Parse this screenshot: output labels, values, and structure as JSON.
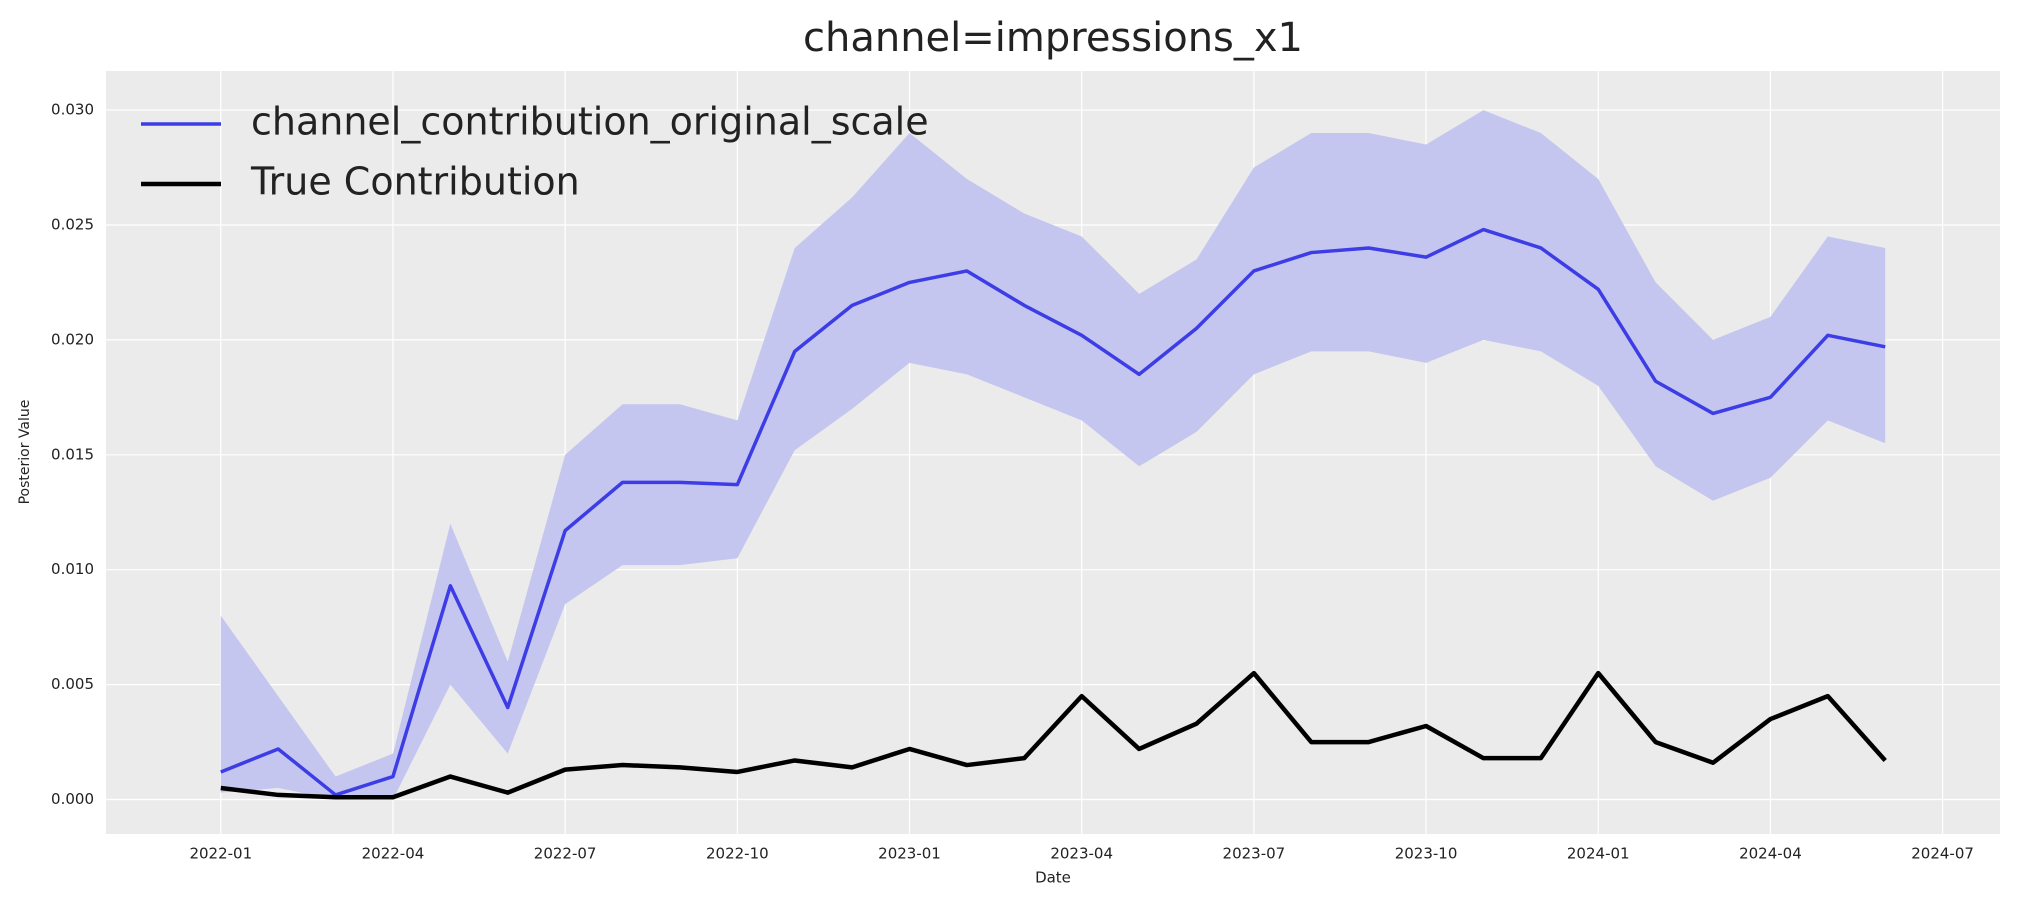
{
  "chart_data": {
    "type": "line",
    "title": "channel=impressions_x1",
    "xlabel": "Date",
    "ylabel": "Posterior Value",
    "x": [
      "2022-01",
      "2022-02",
      "2022-03",
      "2022-04",
      "2022-05",
      "2022-06",
      "2022-07",
      "2022-08",
      "2022-09",
      "2022-10",
      "2022-11",
      "2022-12",
      "2023-01",
      "2023-02",
      "2023-03",
      "2023-04",
      "2023-05",
      "2023-06",
      "2023-07",
      "2023-08",
      "2023-09",
      "2023-10",
      "2023-11",
      "2023-12",
      "2024-01",
      "2024-02",
      "2024-03",
      "2024-04",
      "2024-05",
      "2024-06"
    ],
    "series": [
      {
        "name": "channel_contribution_original_scale",
        "color": "#3d3de6",
        "band_color": "#c5c6ef",
        "values": [
          0.0012,
          0.0022,
          0.0002,
          0.001,
          0.0093,
          0.004,
          0.0117,
          0.0138,
          0.0138,
          0.0137,
          0.0195,
          0.0215,
          0.0225,
          0.023,
          0.0215,
          0.0202,
          0.0185,
          0.0205,
          0.023,
          0.0238,
          0.024,
          0.0236,
          0.0248,
          0.024,
          0.0222,
          0.0182,
          0.0168,
          0.0175,
          0.0202,
          0.0197
        ],
        "lower": [
          0.0003,
          0.0005,
          0,
          0,
          0.005,
          0.002,
          0.0085,
          0.0102,
          0.0102,
          0.0105,
          0.0152,
          0.017,
          0.019,
          0.0185,
          0.0175,
          0.0165,
          0.0145,
          0.016,
          0.0185,
          0.0195,
          0.0195,
          0.019,
          0.02,
          0.0195,
          0.018,
          0.0145,
          0.013,
          0.014,
          0.0165,
          0.0155
        ],
        "upper": [
          0.008,
          0.0045,
          0.001,
          0.002,
          0.012,
          0.006,
          0.015,
          0.0172,
          0.0172,
          0.0165,
          0.024,
          0.0262,
          0.029,
          0.027,
          0.0255,
          0.0245,
          0.022,
          0.0235,
          0.0275,
          0.029,
          0.029,
          0.0285,
          0.03,
          0.029,
          0.027,
          0.0225,
          0.02,
          0.021,
          0.0245,
          0.024
        ]
      },
      {
        "name": "True Contribution",
        "color": "#000000",
        "values": [
          0.0005,
          0.0002,
          0.0001,
          0.0001,
          0.001,
          0.0003,
          0.0013,
          0.0015,
          0.0014,
          0.0012,
          0.0017,
          0.0014,
          0.0022,
          0.0015,
          0.0018,
          0.0045,
          0.0022,
          0.0033,
          0.0055,
          0.0025,
          0.0025,
          0.0032,
          0.0018,
          0.0018,
          0.0055,
          0.0025,
          0.0016,
          0.0035,
          0.0045,
          0.0017
        ]
      }
    ],
    "xlim": [
      "2021-11",
      "2024-08"
    ],
    "xticks": [
      "2022-01",
      "2022-04",
      "2022-07",
      "2022-10",
      "2023-01",
      "2023-04",
      "2023-07",
      "2023-10",
      "2024-01",
      "2024-04",
      "2024-07"
    ],
    "ylim": [
      -0.0015,
      0.0317
    ],
    "yticks": [
      {
        "value": 0,
        "label": "0.000"
      },
      {
        "value": 0.005,
        "label": "0.005"
      },
      {
        "value": 0.01,
        "label": "0.010"
      },
      {
        "value": 0.015,
        "label": "0.015"
      },
      {
        "value": 0.02,
        "label": "0.020"
      },
      {
        "value": 0.025,
        "label": "0.025"
      },
      {
        "value": 0.03,
        "label": "0.030"
      }
    ],
    "grid": true,
    "legend": "upper left"
  }
}
